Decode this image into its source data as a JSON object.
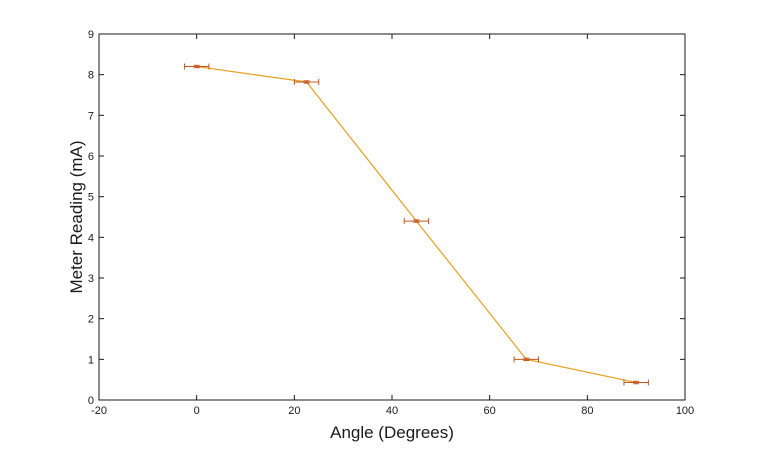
{
  "chart_data": {
    "type": "line",
    "title": "",
    "xlabel": "Angle (Degrees)",
    "ylabel": "Meter Reading (mA)",
    "xlim": [
      -20,
      100
    ],
    "ylim": [
      0,
      9
    ],
    "xticks": [
      -20,
      0,
      20,
      40,
      60,
      80,
      100
    ],
    "yticks": [
      0,
      1,
      2,
      3,
      4,
      5,
      6,
      7,
      8,
      9
    ],
    "xtick_labels": [
      "-20",
      "0",
      "20",
      "40",
      "60",
      "80",
      "100"
    ],
    "ytick_labels": [
      "0",
      "1",
      "2",
      "3",
      "4",
      "5",
      "6",
      "7",
      "8",
      "9"
    ],
    "grid": false,
    "series": [
      {
        "x": [
          0,
          22.5,
          45,
          67.5,
          90
        ],
        "y": [
          8.2,
          7.82,
          4.4,
          1.0,
          0.43
        ],
        "x_error": [
          2.5,
          2.5,
          2.5,
          2.5,
          2.5
        ],
        "y_error": [
          0.03,
          0.03,
          0.03,
          0.03,
          0.03
        ],
        "line_color": "#e3a021",
        "errorbar_color": "#c4551e"
      }
    ]
  }
}
